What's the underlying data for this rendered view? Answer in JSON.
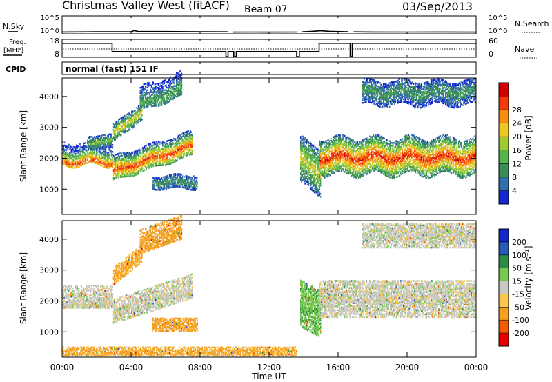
{
  "header": {
    "title": "Christmas Valley West (fitACF)",
    "beam": "Beam 07",
    "date": "03/Sep/2013"
  },
  "sky_panel": {
    "left_label": "N.Sky",
    "left_ticks": [
      "10^5",
      "10^0"
    ],
    "right_ticks": [
      "10^5",
      "10^0"
    ],
    "right_label": "N.Search"
  },
  "freq_panel": {
    "left_label_line1": "Freq.",
    "left_label_line2": "[MHz]",
    "left_ticks": [
      "18",
      "8"
    ],
    "right_ticks": [
      "60",
      "0"
    ],
    "right_label": "Nave"
  },
  "cpid_panel": {
    "label": "CPID",
    "text": "normal (fast) 151 IF"
  },
  "time_axis": {
    "label": "Time UT",
    "ticks": [
      "00:00",
      "04:00",
      "08:00",
      "12:00",
      "16:00",
      "20:00",
      "00:00"
    ]
  },
  "colors": {
    "power": [
      "#1428d2",
      "#326eaa",
      "#3c8c5a",
      "#55b450",
      "#a0c832",
      "#ebc828",
      "#f58c14",
      "#f03c0a",
      "#d20000"
    ],
    "velocity": [
      "#e80000",
      "#f05a00",
      "#f5a020",
      "#f8c850",
      "#c8c8c0",
      "#78c850",
      "#2e8c46",
      "#285ab4",
      "#1428c8"
    ]
  },
  "chart_data": [
    {
      "type": "line",
      "name": "sky-noise",
      "x_unit": "hours UT",
      "xlim": [
        0,
        24
      ],
      "y_scale": "log",
      "ylim": [
        1,
        100000
      ],
      "segments": [
        {
          "x": [
            0.0,
            2.0,
            4.0,
            4.2,
            4.4,
            6.0,
            8.0,
            9.6
          ],
          "y": [
            2.2,
            2.5,
            2.8,
            6.0,
            3.0,
            3.0,
            2.6,
            2.4
          ]
        },
        {
          "x": [
            9.9,
            11.0,
            12.0,
            13.6
          ],
          "y": [
            2.0,
            2.1,
            2.0,
            2.1
          ]
        },
        {
          "x": [
            13.9,
            14.5,
            15.0,
            15.5,
            16.6
          ],
          "y": [
            2.4,
            3.5,
            5.0,
            3.5,
            2.6
          ]
        },
        {
          "x": [
            16.9,
            18.0,
            20.0,
            22.0,
            24.0
          ],
          "y": [
            2.4,
            2.2,
            2.1,
            2.2,
            2.0
          ]
        }
      ]
    },
    {
      "type": "line",
      "name": "frequency",
      "x_unit": "hours UT",
      "xlim": [
        0,
        24
      ],
      "ylim": [
        8,
        18
      ],
      "x": [
        0.0,
        2.9,
        2.9,
        9.5,
        9.5,
        9.62,
        9.62,
        9.95,
        9.95,
        10.1,
        10.1,
        13.6,
        13.6,
        13.75,
        13.75,
        14.9,
        14.9,
        16.7,
        16.7,
        16.82,
        16.82,
        24.0
      ],
      "y": [
        16.0,
        16.0,
        11.0,
        11.0,
        8.0,
        8.0,
        11.0,
        11.0,
        8.0,
        8.0,
        11.0,
        11.0,
        8.0,
        8.0,
        11.0,
        11.0,
        16.0,
        16.0,
        8.0,
        8.0,
        16.0,
        16.0
      ]
    },
    {
      "type": "heatmap",
      "name": "power",
      "x_unit": "hours UT",
      "xlim": [
        0,
        24
      ],
      "ylabel": "Slant Range [km]",
      "ylim": [
        180,
        4600
      ],
      "yticks": [
        1000,
        2000,
        3000,
        4000
      ],
      "colorbar": {
        "label": "Power [dB]",
        "ticks": [
          "4",
          "8",
          "12",
          "16",
          "20",
          "24",
          "28"
        ],
        "range": [
          0,
          32
        ]
      },
      "bands": [
        {
          "t0": 0.0,
          "t1": 2.9,
          "r_lo": 1750,
          "r_hi": 2500,
          "core": 1850,
          "peak": 26,
          "wave": 90
        },
        {
          "t0": 1.5,
          "t1": 2.9,
          "r_lo": 2300,
          "r_hi": 2750,
          "core": 2500,
          "peak": 14,
          "wave": 40
        },
        {
          "t0": 2.95,
          "t1": 7.5,
          "r_lo": 1250,
          "r_hi": 2050,
          "core": 1550,
          "slope": 180,
          "peak": 27,
          "wave": 50
        },
        {
          "t0": 2.95,
          "t1": 4.6,
          "r_lo": 2500,
          "r_hi": 3050,
          "core": 2750,
          "slope": 450,
          "peak": 20,
          "wave": 40
        },
        {
          "t0": 4.5,
          "t1": 6.9,
          "r_lo": 3500,
          "r_hi": 4300,
          "core": 3700,
          "slope": 200,
          "peak": 12,
          "wave": 60
        },
        {
          "t0": 5.2,
          "t1": 7.8,
          "r_lo": 1000,
          "r_hi": 1450,
          "core": 1200,
          "peak": 10,
          "wave": 60
        },
        {
          "t0": 13.8,
          "t1": 15.0,
          "r_lo": 1150,
          "r_hi": 2650,
          "core": 1900,
          "slope": -300,
          "peak": 18,
          "wave": 80
        },
        {
          "t0": 14.9,
          "t1": 24.0,
          "r_lo": 1450,
          "r_hi": 2650,
          "core": 2000,
          "peak": 28,
          "wave": 110
        },
        {
          "t0": 17.4,
          "t1": 24.0,
          "r_lo": 3700,
          "r_hi": 4500,
          "core": 4100,
          "peak": 10,
          "wave": 90
        }
      ]
    },
    {
      "type": "heatmap",
      "name": "velocity",
      "x_unit": "hours UT",
      "xlim": [
        0,
        24
      ],
      "ylabel": "Slant Range [km]",
      "ylim": [
        180,
        4600
      ],
      "yticks": [
        1000,
        2000,
        3000,
        4000
      ],
      "colorbar": {
        "label": "Velocity [m s⁻¹]",
        "ticks": [
          "200",
          "100",
          "50",
          "15",
          "-15",
          "-50",
          "-100",
          "-200"
        ],
        "range": [
          -250,
          250
        ]
      },
      "bands": [
        {
          "t0": 0.0,
          "t1": 2.9,
          "r_lo": 1750,
          "r_hi": 2500,
          "core": 1850,
          "v": 0
        },
        {
          "t0": 2.95,
          "t1": 7.5,
          "r_lo": 1250,
          "r_hi": 2050,
          "core": 1550,
          "slope": 180,
          "v": 0
        },
        {
          "t0": 2.95,
          "t1": 4.6,
          "r_lo": 2500,
          "r_hi": 3050,
          "core": 2750,
          "slope": 450,
          "v": -60
        },
        {
          "t0": 4.5,
          "t1": 6.9,
          "r_lo": 3500,
          "r_hi": 4300,
          "core": 3700,
          "slope": 200,
          "v": -70
        },
        {
          "t0": 5.2,
          "t1": 7.8,
          "r_lo": 1000,
          "r_hi": 1450,
          "core": 1200,
          "v": -70
        },
        {
          "t0": 13.8,
          "t1": 15.0,
          "r_lo": 1150,
          "r_hi": 2650,
          "core": 1900,
          "slope": -300,
          "v": 40
        },
        {
          "t0": 14.9,
          "t1": 24.0,
          "r_lo": 1450,
          "r_hi": 2650,
          "core": 2000,
          "v": 0
        },
        {
          "t0": 17.4,
          "t1": 24.0,
          "r_lo": 3700,
          "r_hi": 4500,
          "core": 4100,
          "v": 0
        },
        {
          "t0": 0.0,
          "t1": 13.6,
          "r_lo": 200,
          "r_hi": 480,
          "core": 300,
          "v": -60
        }
      ]
    }
  ]
}
